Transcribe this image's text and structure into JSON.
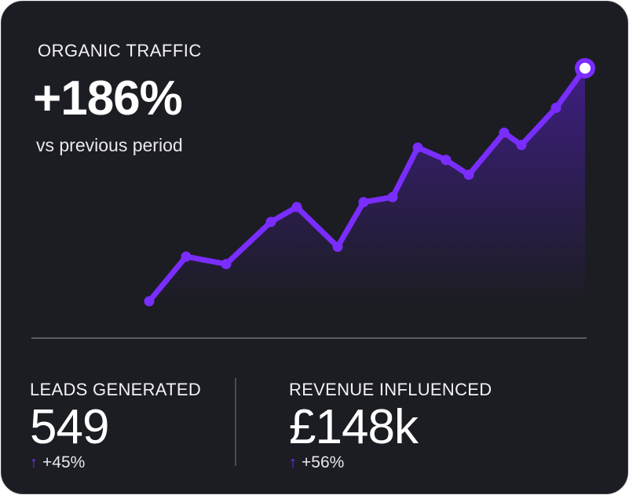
{
  "card": {
    "title": "ORGANIC TRAFFIC",
    "headline": "+186%",
    "subtitle": "vs previous period"
  },
  "chart_data": {
    "type": "line",
    "color": "#7a2dff",
    "values": [
      0,
      18,
      15,
      32,
      38,
      22,
      40,
      42,
      62,
      57,
      51,
      68,
      63,
      78,
      94
    ],
    "ylim": [
      0,
      100
    ],
    "area_fill": true,
    "highlight_last_point": true
  },
  "metrics": [
    {
      "label": "LEADS GENERATED",
      "value": "549",
      "arrow": "↑",
      "change": "+45%"
    },
    {
      "label": "REVENUE INFLUENCED",
      "value": "£148k",
      "arrow": "↑",
      "change": "+56%"
    }
  ],
  "colors": {
    "background": "#1c1d23",
    "accent": "#7a2dff",
    "text": "#ffffff"
  }
}
